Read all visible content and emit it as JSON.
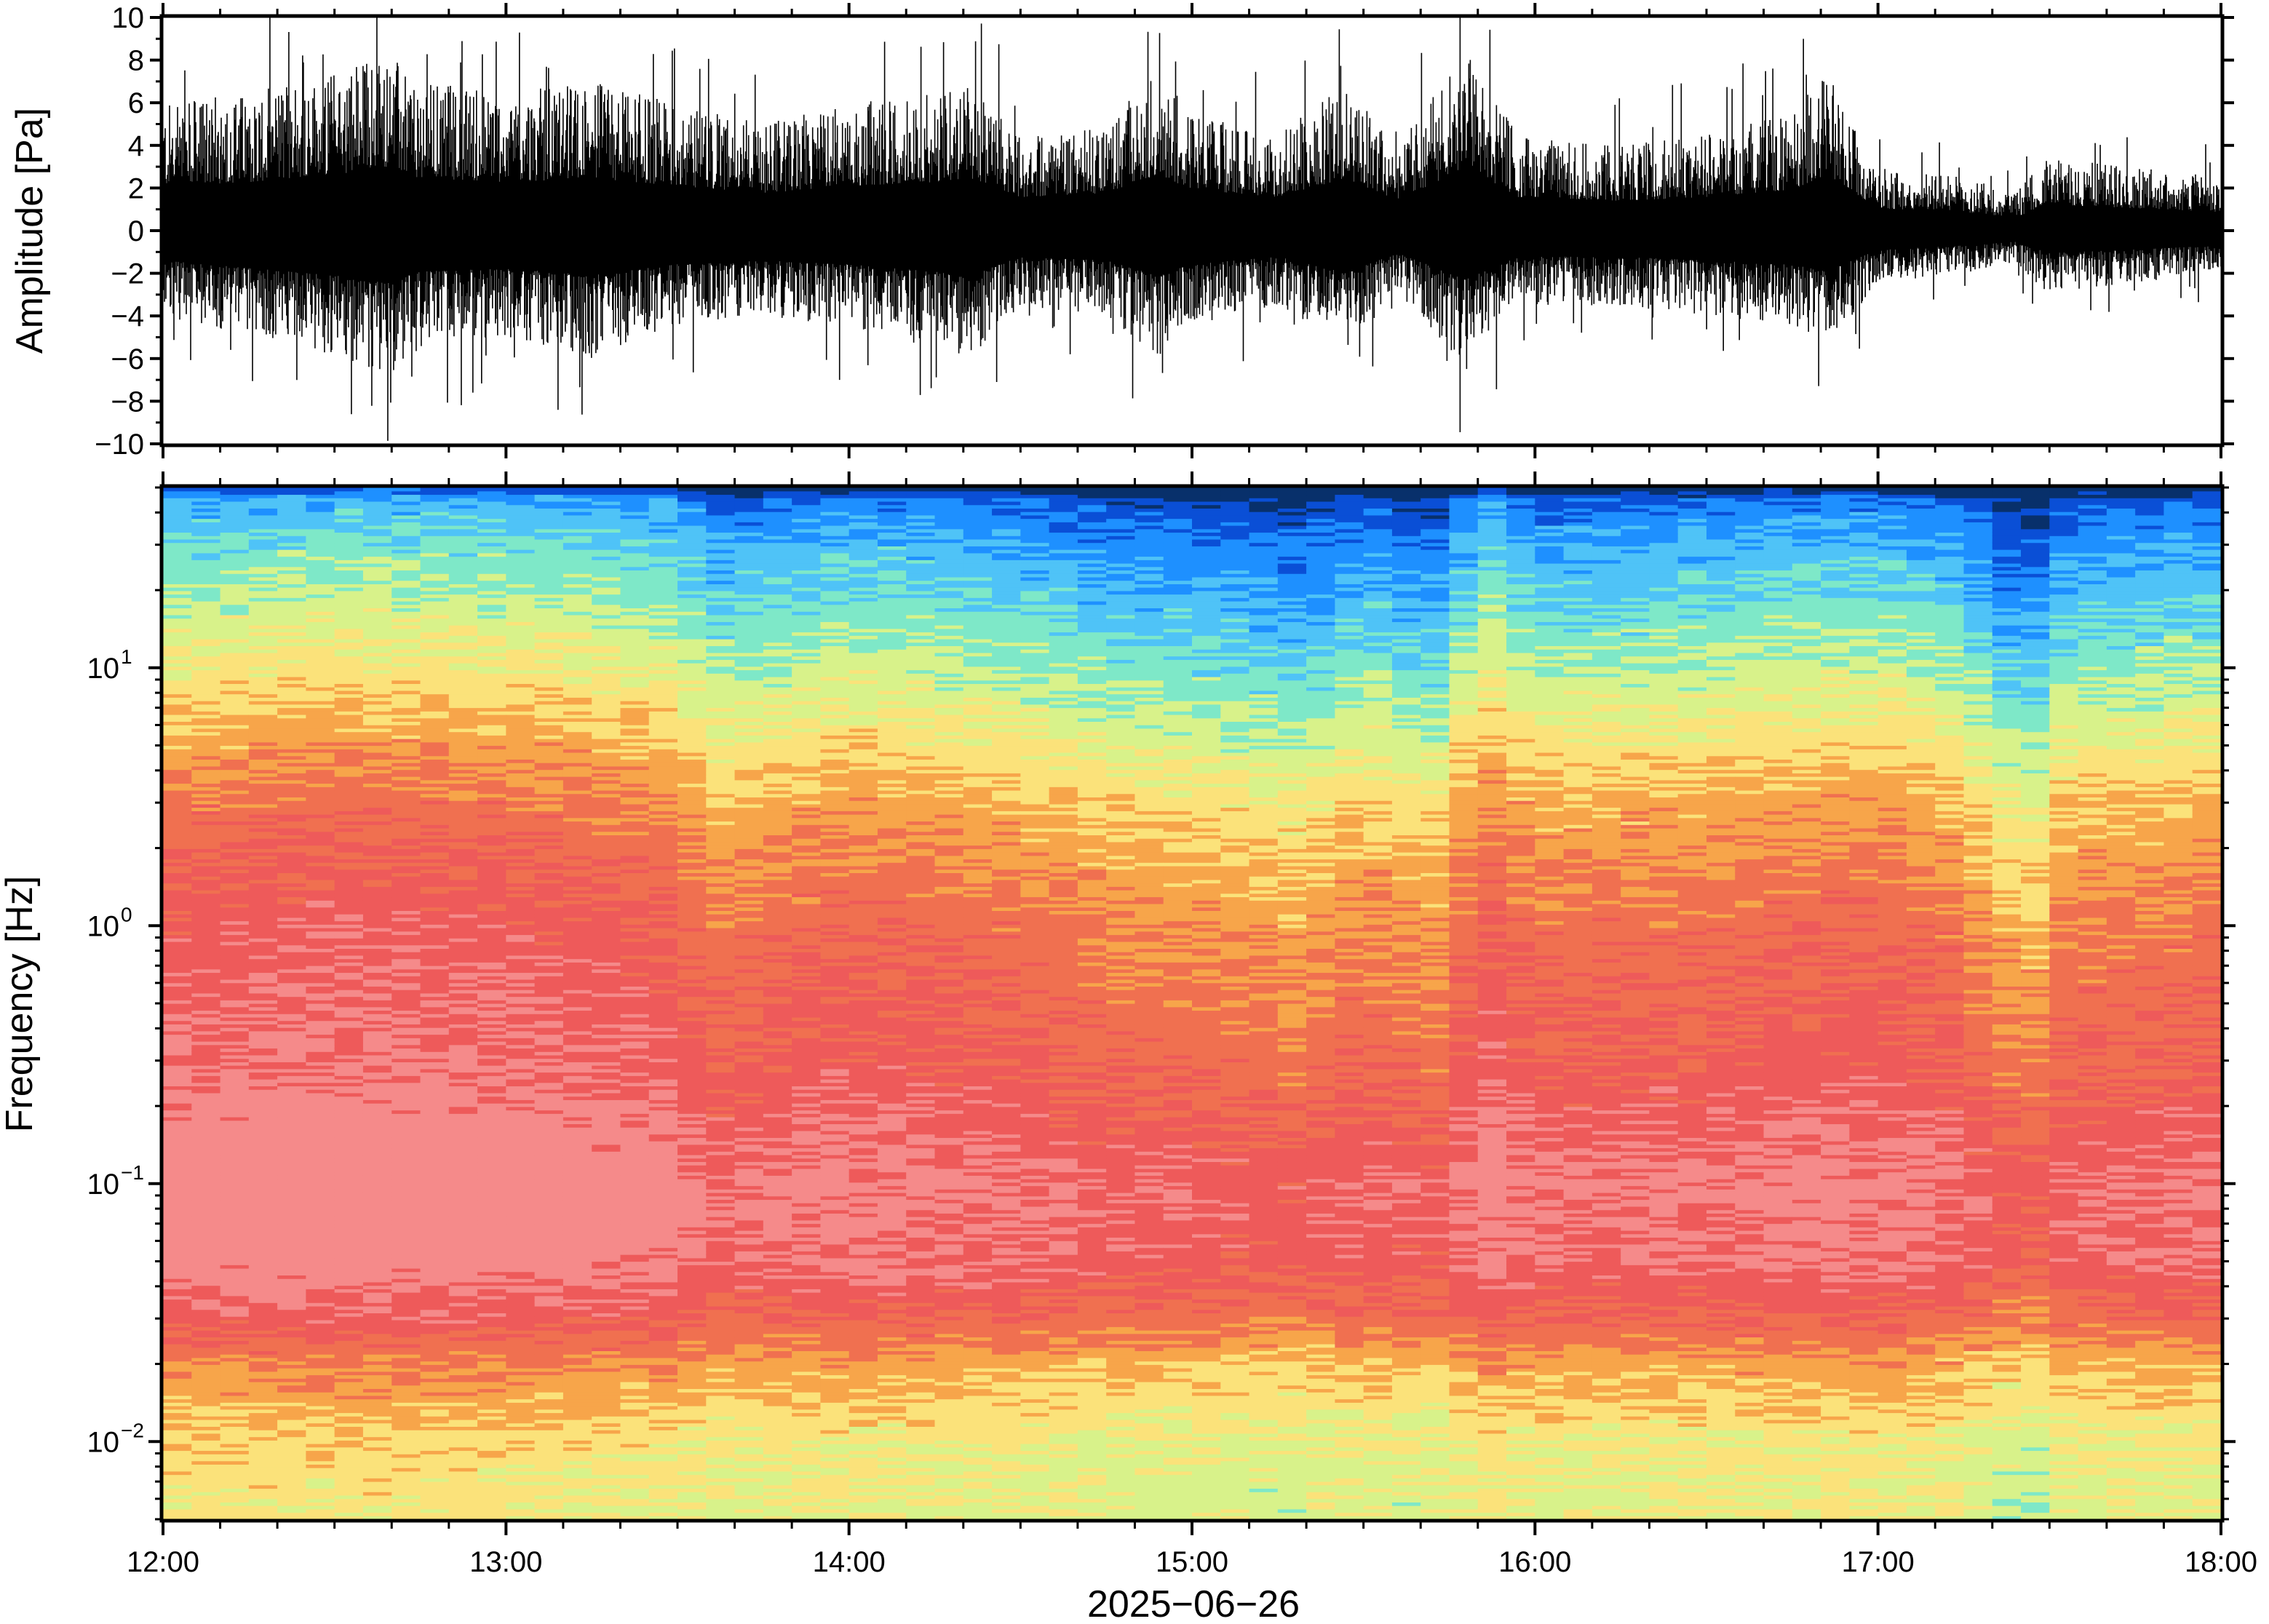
{
  "chart_data": [
    {
      "type": "line",
      "panel": "waveform",
      "ylabel": "Amplitude [Pa]",
      "ylim": [
        -10,
        10
      ],
      "yticks": [
        -10,
        -8,
        -6,
        -4,
        -2,
        0,
        2,
        4,
        6,
        8,
        10
      ],
      "ytick_labels": [
        "−10",
        "−8",
        "−6",
        "−4",
        "−2",
        "0",
        "2",
        "4",
        "6",
        "8",
        "10"
      ],
      "x_range_hours": [
        12,
        18
      ],
      "grid": false,
      "envelope": {
        "x_hours": [
          12.0,
          12.25,
          12.5,
          12.65,
          12.75,
          13.0,
          13.25,
          13.5,
          13.75,
          14.0,
          14.25,
          14.35,
          14.5,
          14.75,
          14.9,
          15.0,
          15.25,
          15.45,
          15.6,
          15.8,
          15.95,
          16.25,
          16.5,
          16.75,
          16.85,
          17.0,
          17.25,
          17.4,
          17.5,
          17.75,
          18.0
        ],
        "max": [
          6.0,
          6.5,
          7.5,
          8.5,
          7.0,
          6.5,
          7.0,
          6.0,
          5.0,
          6.0,
          6.5,
          7.0,
          4.5,
          5.0,
          7.5,
          5.5,
          4.5,
          7.0,
          4.0,
          8.5,
          4.5,
          4.0,
          4.5,
          5.5,
          7.5,
          3.0,
          2.5,
          1.8,
          3.5,
          3.0,
          2.5
        ],
        "min": [
          -4.0,
          -5.0,
          -6.0,
          -7.0,
          -5.5,
          -5.0,
          -6.0,
          -4.5,
          -4.0,
          -4.5,
          -5.5,
          -6.0,
          -3.5,
          -4.0,
          -6.0,
          -4.5,
          -3.5,
          -5.5,
          -3.0,
          -6.5,
          -3.5,
          -3.5,
          -4.0,
          -4.5,
          -5.5,
          -2.5,
          -2.0,
          -1.5,
          -3.0,
          -2.5,
          -2.0
        ]
      }
    },
    {
      "type": "heatmap",
      "panel": "spectrogram",
      "ylabel": "Frequency [Hz]",
      "yscale": "log",
      "ylim": [
        0.005,
        50
      ],
      "yticks": [
        0.01,
        0.1,
        1,
        10
      ],
      "ytick_base": "10",
      "ytick_exponents": [
        "−2",
        "−1",
        "0",
        "1"
      ],
      "xlabel": "2025−06−26",
      "xticks_hours": [
        12,
        13,
        14,
        15,
        16,
        17,
        18
      ],
      "xtick_labels": [
        "12:00",
        "13:00",
        "14:00",
        "15:00",
        "16:00",
        "17:00",
        "18:00"
      ],
      "colormap": [
        "#08306b",
        "#0a4fd6",
        "#1e90ff",
        "#4fc3f7",
        "#7ee8c8",
        "#d8f28a",
        "#fbe27a",
        "#f7a54a",
        "#f07050",
        "#ee5a5a",
        "#f58a8a"
      ],
      "time_columns": 72,
      "level_profile": {
        "freq_hz": [
          0.005,
          0.01,
          0.02,
          0.03,
          0.05,
          0.1,
          0.3,
          1,
          3,
          10,
          30,
          45,
          50
        ],
        "level": [
          0.55,
          0.58,
          0.72,
          0.86,
          0.97,
          1.0,
          0.9,
          0.84,
          0.72,
          0.5,
          0.3,
          0.18,
          0.0
        ]
      },
      "column_bias": {
        "x_hours": [
          12.0,
          12.5,
          13.0,
          13.5,
          13.6,
          14.0,
          14.5,
          14.75,
          15.0,
          15.25,
          15.3,
          15.5,
          15.7,
          15.85,
          16.0,
          16.5,
          17.0,
          17.25,
          17.35,
          17.45,
          17.55,
          18.0
        ],
        "bias": [
          0.04,
          0.06,
          0.05,
          0.02,
          -0.04,
          0.0,
          -0.03,
          -0.06,
          -0.07,
          -0.09,
          -0.1,
          -0.05,
          -0.09,
          0.03,
          -0.03,
          -0.02,
          0.0,
          -0.04,
          -0.1,
          -0.12,
          -0.05,
          -0.03
        ]
      }
    }
  ]
}
